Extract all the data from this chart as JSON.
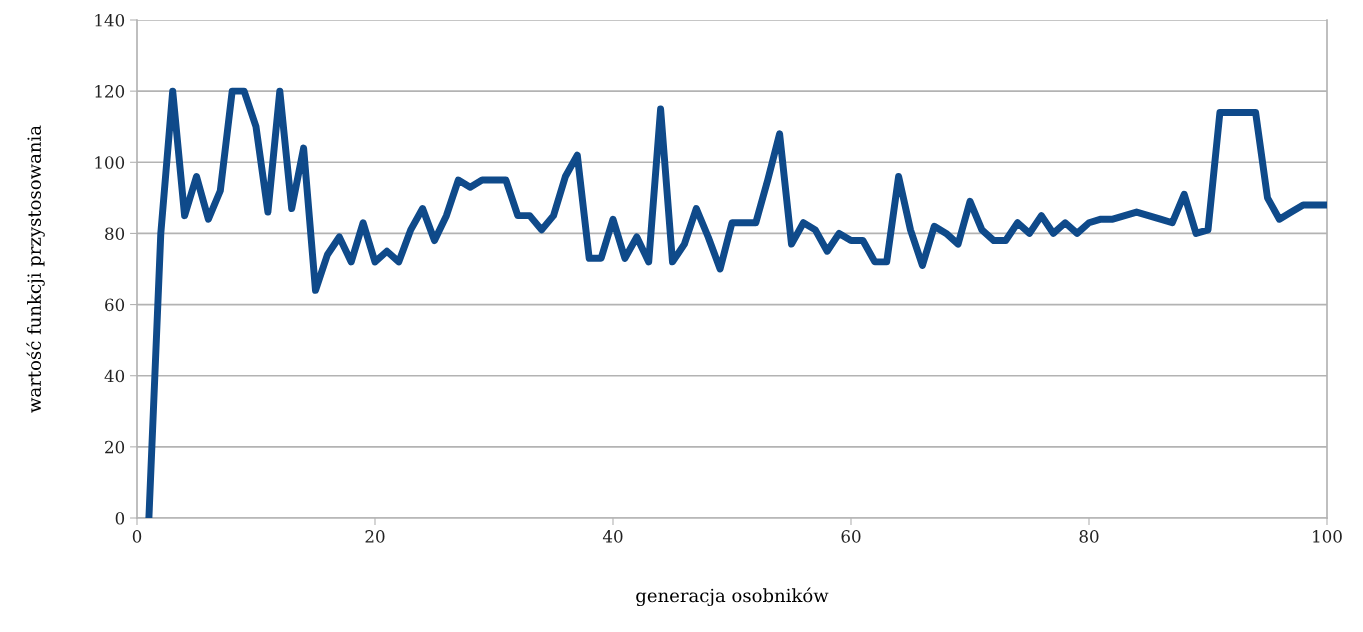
{
  "chart_data": {
    "type": "line",
    "xlabel": "generacja osobników",
    "ylabel": "wartość funkcji przystosowania",
    "x": [
      1,
      2,
      3,
      4,
      5,
      6,
      7,
      8,
      9,
      10,
      11,
      12,
      13,
      14,
      15,
      16,
      17,
      18,
      19,
      20,
      21,
      22,
      23,
      24,
      25,
      26,
      27,
      28,
      29,
      30,
      31,
      32,
      33,
      34,
      35,
      36,
      37,
      38,
      39,
      40,
      41,
      42,
      43,
      44,
      45,
      46,
      47,
      48,
      49,
      50,
      51,
      52,
      53,
      54,
      55,
      56,
      57,
      58,
      59,
      60,
      61,
      62,
      63,
      64,
      65,
      66,
      67,
      68,
      69,
      70,
      71,
      72,
      73,
      74,
      75,
      76,
      77,
      78,
      79,
      80,
      81,
      82,
      83,
      84,
      85,
      86,
      87,
      88,
      89,
      90,
      91,
      92,
      93,
      94,
      95,
      96,
      97,
      98,
      99,
      100
    ],
    "series": [
      {
        "color": "#0f4a8a",
        "values": [
          0,
          80,
          120,
          85,
          96,
          84,
          92,
          120,
          120,
          110,
          86,
          120,
          87,
          104,
          64,
          74,
          79,
          72,
          83,
          72,
          75,
          72,
          81,
          87,
          78,
          85,
          95,
          93,
          95,
          95,
          95,
          85,
          85,
          81,
          85,
          96,
          102,
          73,
          73,
          84,
          73,
          79,
          72,
          115,
          72,
          77,
          87,
          79,
          70,
          83,
          83,
          83,
          95,
          108,
          77,
          83,
          81,
          75,
          80,
          78,
          78,
          72,
          72,
          96,
          81,
          71,
          82,
          80,
          77,
          89,
          81,
          78,
          78,
          83,
          80,
          85,
          80,
          83,
          80,
          83,
          84,
          84,
          85,
          86,
          85,
          84,
          83,
          91,
          80,
          81,
          114,
          114,
          114,
          114,
          90,
          84,
          86,
          88,
          88,
          88
        ]
      }
    ],
    "xlim": [
      0,
      100
    ],
    "xticks": [
      0,
      20,
      40,
      60,
      80,
      100
    ],
    "ylim": [
      0,
      140
    ],
    "yticks": [
      0,
      20,
      40,
      60,
      80,
      100,
      120,
      140
    ],
    "grid": "y",
    "marker": "none",
    "line_style": "solid",
    "legend": false
  }
}
